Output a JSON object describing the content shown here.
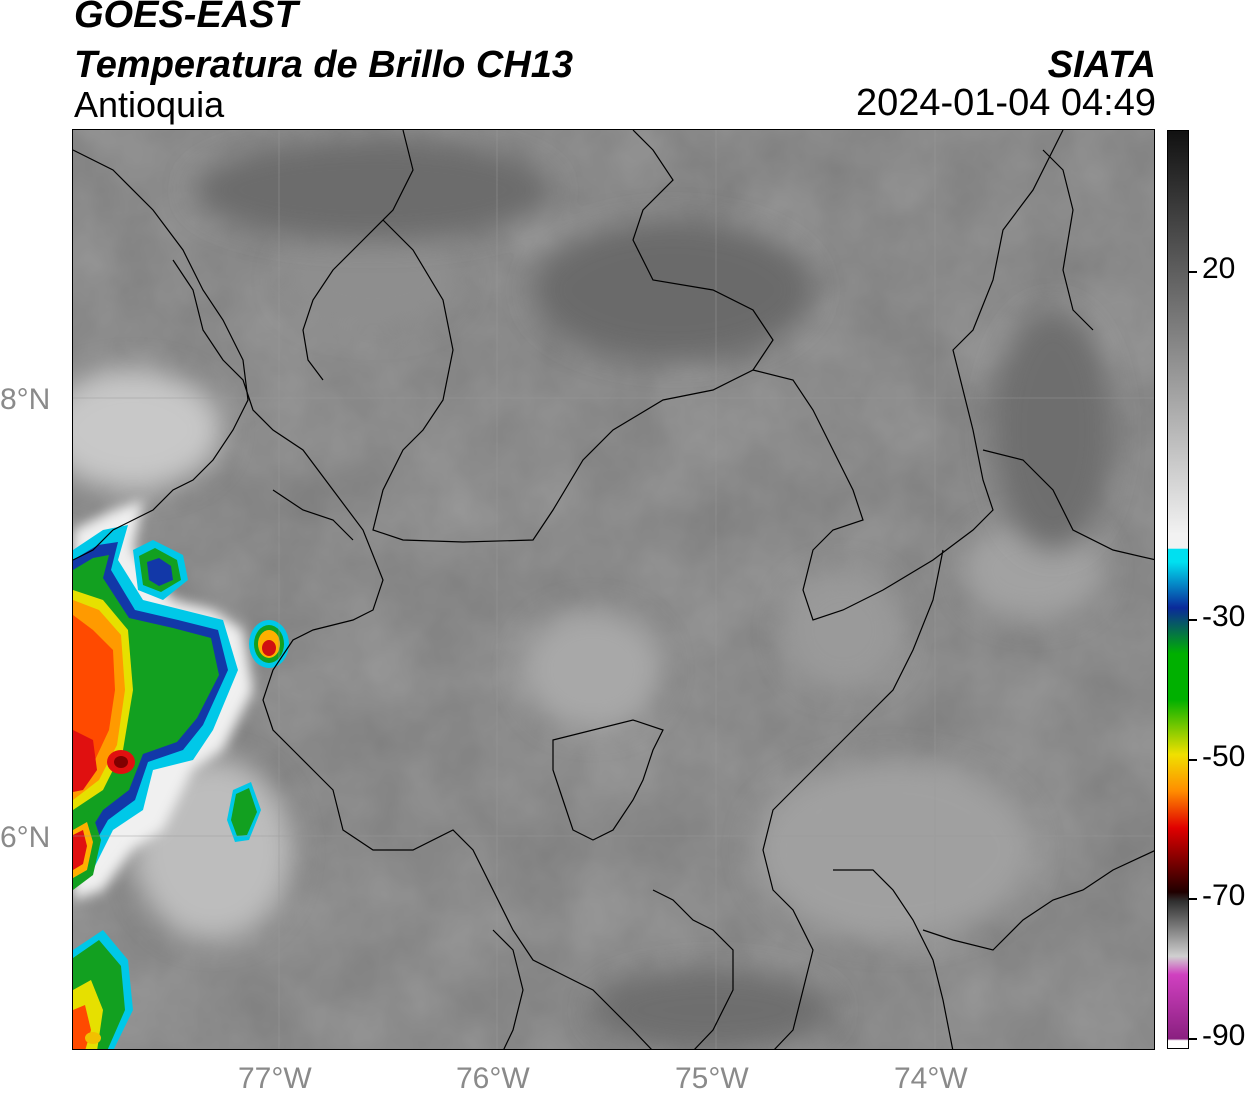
{
  "header": {
    "satellite": "GOES-EAST",
    "product": "Temperatura de Brillo CH13",
    "region": "Antioquia",
    "agency": "SIATA",
    "datetime": "2024-01-04 04:49"
  },
  "axes": {
    "lat_labels": [
      "8°N",
      "6°N"
    ],
    "lon_labels": [
      "77°W",
      "76°W",
      "75°W",
      "74°W"
    ]
  },
  "colorbar": {
    "ticks": [
      "20",
      "-30",
      "-50",
      "-70",
      "-90"
    ],
    "colors": {
      "black": "#111111",
      "gray": "#808080",
      "white": "#f2f2f2",
      "cyan": "#00e0f0",
      "blue": "#0a2a9a",
      "green": "#00b000",
      "yellow": "#f0e000",
      "orange": "#ff8c00",
      "red": "#e00000",
      "magenta": "#d040c0"
    }
  }
}
